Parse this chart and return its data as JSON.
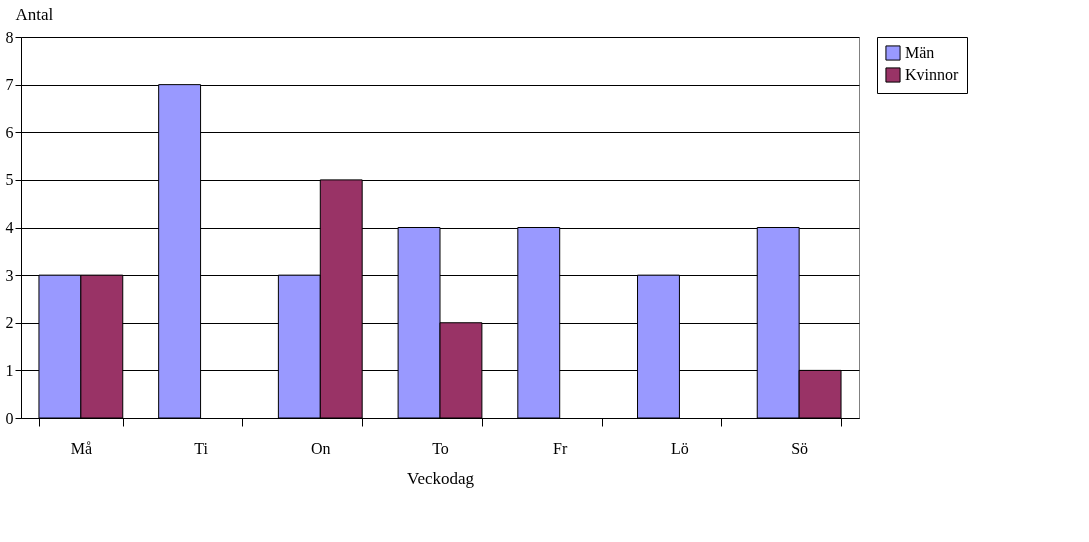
{
  "chart_data": {
    "type": "bar",
    "xlabel": "Veckodag",
    "ylabel": "Antal",
    "categories": [
      "Må",
      "Ti",
      "On",
      "To",
      "Fr",
      "Lö",
      "Sö"
    ],
    "series": [
      {
        "name": "Män",
        "color": "#9999ff",
        "values": [
          3,
          7,
          3,
          4,
          4,
          3,
          4
        ]
      },
      {
        "name": "Kvinnor",
        "color": "#993366",
        "values": [
          3,
          0,
          5,
          2,
          0,
          0,
          1
        ]
      }
    ],
    "ylim": [
      0,
      8
    ],
    "yticks": [
      0,
      1,
      2,
      3,
      4,
      5,
      6,
      7,
      8
    ],
    "grid": "y",
    "legend": "right"
  }
}
